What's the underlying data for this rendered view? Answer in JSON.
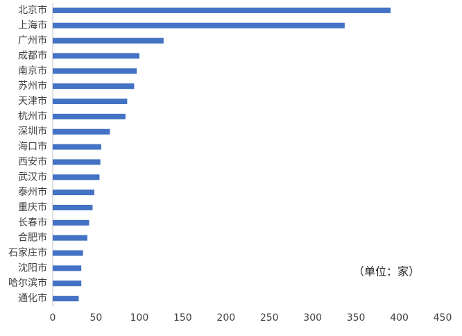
{
  "chart_data": {
    "type": "hbar",
    "categories": [
      "北京市",
      "上海市",
      "广州市",
      "成都市",
      "南京市",
      "苏州市",
      "天津市",
      "杭州市",
      "深圳市",
      "海口市",
      "西安市",
      "武汉市",
      "泰州市",
      "重庆市",
      "长春市",
      "合肥市",
      "石家庄市",
      "沈阳市",
      "哈尔滨市",
      "通化市"
    ],
    "values": [
      390,
      337,
      128,
      100,
      97,
      94,
      86,
      84,
      66,
      56,
      55,
      54,
      48,
      46,
      42,
      40,
      35,
      33,
      33,
      30
    ],
    "color": "#4472c4",
    "xlim": [
      0,
      450
    ],
    "xticks": [
      0,
      50,
      100,
      150,
      200,
      250,
      300,
      350,
      400,
      450
    ],
    "annotation": "（单位：家）"
  }
}
